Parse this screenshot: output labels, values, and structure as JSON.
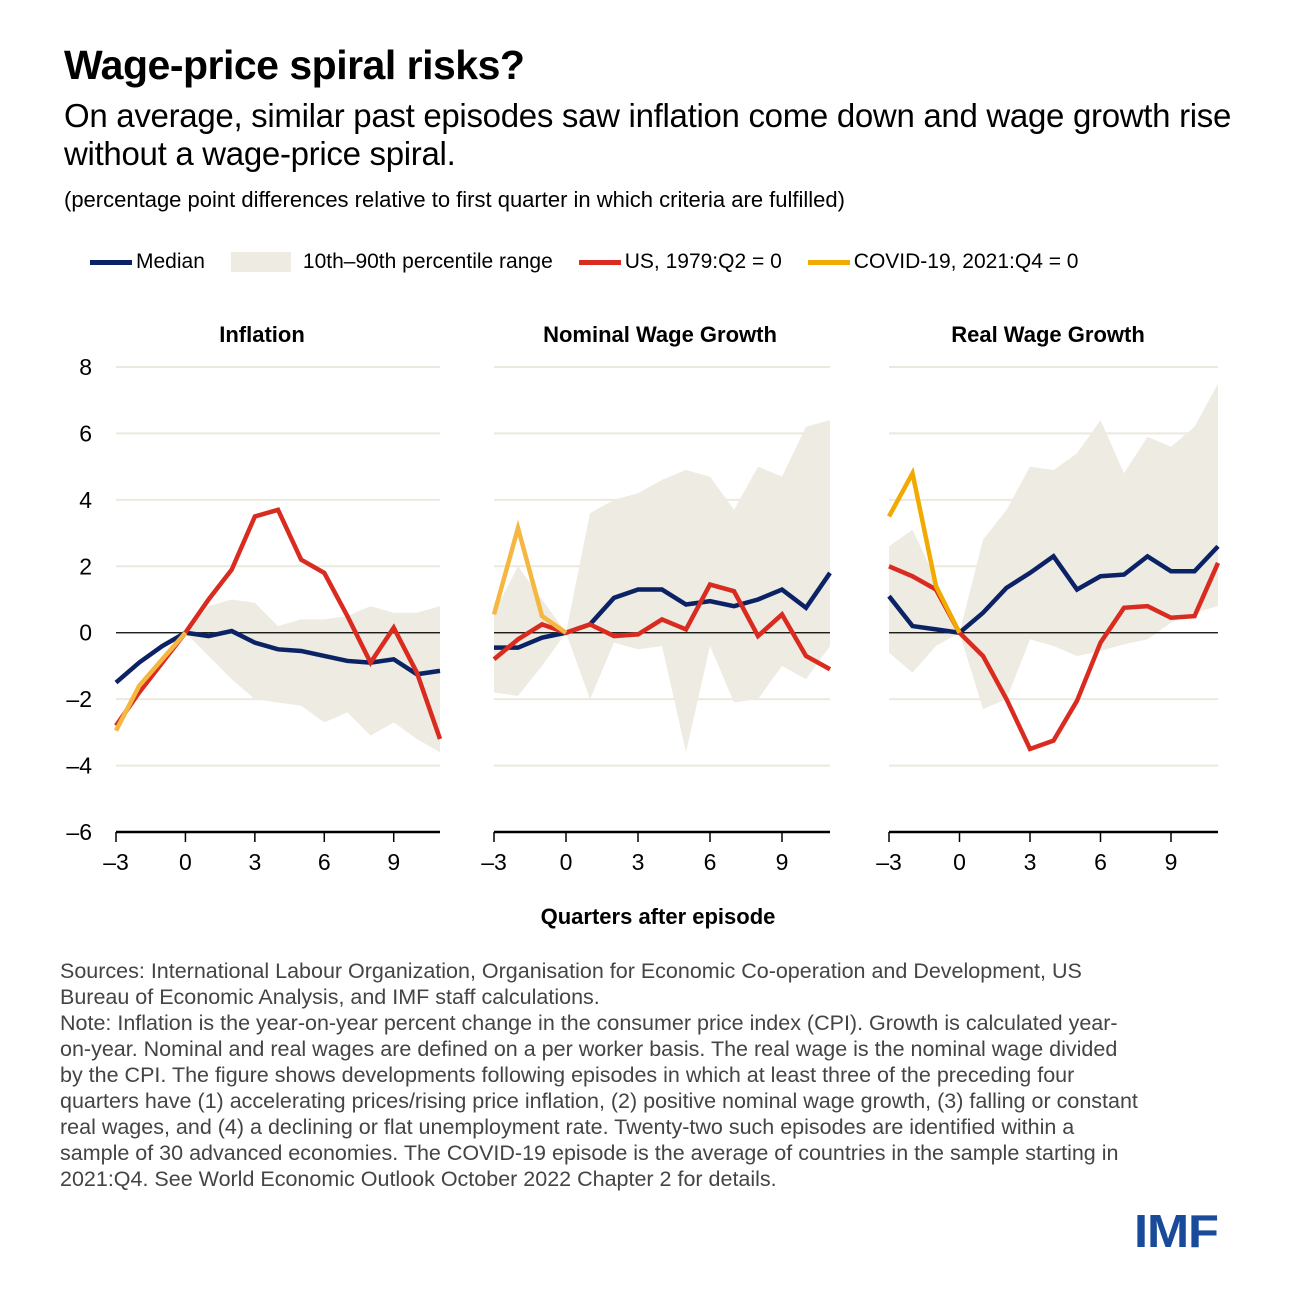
{
  "header": {
    "title": "Wage-price spiral risks?",
    "subtitle": "On average, similar past episodes saw inflation come down and wage growth rise without a wage-price spiral.",
    "units": "(percentage point differences relative to first quarter in which criteria are fulfilled)"
  },
  "legend": [
    {
      "label": "Median",
      "color": "#0b2265",
      "kind": "line"
    },
    {
      "label": "10th–90th percentile range",
      "color": "#edebe2",
      "kind": "area"
    },
    {
      "label": "US, 1979:Q2 = 0",
      "color": "#d92b1f",
      "kind": "line"
    },
    {
      "label": "COVID-19, 2021:Q4 = 0",
      "color": "#f2aa00",
      "kind": "line"
    }
  ],
  "chart_data": {
    "type": "line",
    "xlabel": "Quarters after episode",
    "ylim": [
      -6,
      8
    ],
    "yticks": [
      8,
      6,
      4,
      2,
      0,
      -2,
      -4,
      -6
    ],
    "ytick_labels": [
      "8",
      "6",
      "4",
      "2",
      "0",
      "–2",
      "–4",
      "–6"
    ],
    "xlim": [
      -3,
      11
    ],
    "xticks": [
      -3,
      0,
      3,
      6,
      9
    ],
    "xtick_labels": [
      "–3",
      "0",
      "3",
      "6",
      "9"
    ],
    "x": [
      -3,
      -2,
      -1,
      0,
      1,
      2,
      3,
      4,
      5,
      6,
      7,
      8,
      9,
      10,
      11
    ],
    "panels": [
      {
        "title": "Inflation",
        "band_low": [
          -0.6,
          -0.2,
          -0.1,
          0.0,
          -0.7,
          -1.4,
          -2.0,
          -2.1,
          -2.2,
          -2.7,
          -2.4,
          -3.1,
          -2.7,
          -3.2,
          -3.6
        ],
        "band_high": [
          -0.6,
          -0.2,
          -0.1,
          0.0,
          0.8,
          1.0,
          0.9,
          0.2,
          0.4,
          0.4,
          0.5,
          0.8,
          0.6,
          0.6,
          0.8
        ],
        "series": [
          {
            "name": "Median",
            "color": "#0b2265",
            "values": [
              -1.5,
              -0.9,
              -0.4,
              0.0,
              -0.1,
              0.05,
              -0.3,
              -0.5,
              -0.55,
              -0.7,
              -0.85,
              -0.9,
              -0.8,
              -1.25,
              -1.15
            ]
          },
          {
            "name": "US, 1979:Q2 = 0",
            "color": "#d92b1f",
            "values": [
              -2.8,
              -1.8,
              -0.9,
              0.0,
              1.0,
              1.9,
              3.5,
              3.7,
              2.2,
              1.8,
              0.5,
              -0.9,
              0.15,
              -1.2,
              -3.2
            ]
          },
          {
            "name": "COVID-19, 2021:Q4 = 0",
            "color": "#f5b642",
            "values": [
              -2.95,
              -1.6,
              -0.8,
              0.0
            ]
          }
        ]
      },
      {
        "title": "Nominal Wage Growth",
        "band_low": [
          -1.8,
          -1.9,
          -1.0,
          0.0,
          -2.0,
          -0.3,
          -0.5,
          -0.4,
          -3.6,
          -0.4,
          -2.1,
          -2.0,
          -1.0,
          -1.4,
          -0.4
        ],
        "band_high": [
          0.6,
          2.0,
          1.0,
          0.0,
          3.6,
          4.0,
          4.2,
          4.6,
          4.9,
          4.7,
          3.7,
          5.0,
          4.7,
          6.2,
          6.4
        ],
        "series": [
          {
            "name": "Median",
            "color": "#0b2265",
            "values": [
              -0.45,
              -0.45,
              -0.15,
              0.0,
              0.25,
              1.05,
              1.3,
              1.3,
              0.85,
              0.95,
              0.8,
              1.0,
              1.3,
              0.75,
              1.8
            ]
          },
          {
            "name": "US, 1979:Q2 = 0",
            "color": "#d92b1f",
            "values": [
              -0.8,
              -0.2,
              0.25,
              0.0,
              0.25,
              -0.1,
              -0.05,
              0.4,
              0.1,
              1.45,
              1.25,
              -0.1,
              0.55,
              -0.7,
              -1.1
            ]
          },
          {
            "name": "COVID-19, 2021:Q4 = 0",
            "color": "#f5b642",
            "values": [
              0.55,
              3.15,
              0.5,
              0.0
            ]
          }
        ]
      },
      {
        "title": "Real Wage Growth",
        "band_low": [
          -0.6,
          -1.2,
          -0.4,
          0.0,
          -2.3,
          -2.0,
          -0.2,
          -0.4,
          -0.7,
          -0.55,
          -0.35,
          -0.2,
          0.3,
          0.6,
          0.8
        ],
        "band_high": [
          2.6,
          3.1,
          1.6,
          0.0,
          2.8,
          3.7,
          5.0,
          4.9,
          5.4,
          6.4,
          4.8,
          5.9,
          5.6,
          6.2,
          7.5
        ],
        "series": [
          {
            "name": "Median",
            "color": "#0b2265",
            "values": [
              1.1,
              0.2,
              0.1,
              0.0,
              0.6,
              1.35,
              1.8,
              2.3,
              1.3,
              1.7,
              1.75,
              2.3,
              1.85,
              1.85,
              2.6
            ]
          },
          {
            "name": "US, 1979:Q2 = 0",
            "color": "#d92b1f",
            "values": [
              2.0,
              1.7,
              1.3,
              0.0,
              -0.7,
              -2.0,
              -3.5,
              -3.25,
              -2.05,
              -0.3,
              0.75,
              0.8,
              0.45,
              0.5,
              2.1
            ]
          },
          {
            "name": "COVID-19, 2021:Q4 = 0",
            "color": "#f2aa00",
            "values": [
              3.5,
              4.8,
              1.4,
              0.0
            ]
          }
        ]
      }
    ]
  },
  "notes": {
    "sources": "Sources: International Labour Organization, Organisation for Economic Co-operation and Development, US Bureau of Economic Analysis, and IMF staff calculations.",
    "note": "Note: Inflation is the year-on-year percent change in the consumer price index (CPI). Growth is calculated year-on-year. Nominal and real wages are defined on a per worker basis. The real wage is the nominal wage divided by the CPI. The figure shows developments following episodes in which at least three of the preceding four quarters have (1) accelerating prices/rising price inflation, (2) positive nominal wage growth, (3) falling or constant real wages, and (4) a declining or flat unemployment rate. Twenty-two such episodes are identified within a sample of 30 advanced economies. The COVID-19 episode is the average of countries in the sample starting in 2021:Q4. See World Economic Outlook October 2022 Chapter 2 for details."
  },
  "logo": "IMF"
}
